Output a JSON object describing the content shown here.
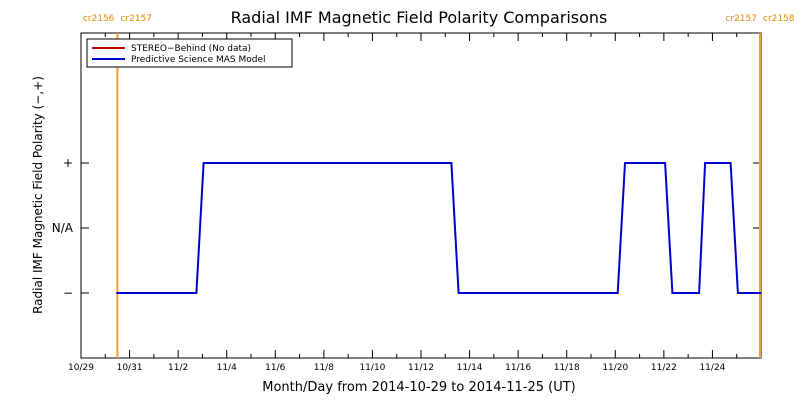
{
  "chart_data": {
    "type": "line",
    "title": "Radial IMF Magnetic Field Polarity Comparisons",
    "xlabel": "Month/Day from 2014-10-29 to 2014-11-25 (UT)",
    "ylabel": "Radial IMF Magnetic Field Polarity (−,+)",
    "xlim": [
      0,
      28
    ],
    "ylim": [
      -2,
      3
    ],
    "x_ticks": [
      {
        "x": 0,
        "label": "10/29"
      },
      {
        "x": 2,
        "label": "10/31"
      },
      {
        "x": 4,
        "label": "11/2"
      },
      {
        "x": 6,
        "label": "11/4"
      },
      {
        "x": 8,
        "label": "11/6"
      },
      {
        "x": 10,
        "label": "11/8"
      },
      {
        "x": 12,
        "label": "11/10"
      },
      {
        "x": 14,
        "label": "11/12"
      },
      {
        "x": 16,
        "label": "11/14"
      },
      {
        "x": 18,
        "label": "11/16"
      },
      {
        "x": 20,
        "label": "11/18"
      },
      {
        "x": 22,
        "label": "11/20"
      },
      {
        "x": 24,
        "label": "11/22"
      },
      {
        "x": 26,
        "label": "11/24"
      }
    ],
    "y_ticks": [
      {
        "y": -1,
        "label": "−"
      },
      {
        "y": 0,
        "label": "N/A"
      },
      {
        "y": 1,
        "label": "+"
      }
    ],
    "legend": {
      "placement": "top-left",
      "entries": [
        {
          "label": "STEREO−Behind (No data)",
          "color": "#cc0000"
        },
        {
          "label": "Predictive Science MAS Model",
          "color": "#0000cc"
        }
      ]
    },
    "carrington_markers": [
      {
        "x": 1.5,
        "label_left": "cr2156",
        "label_right": "cr2157"
      },
      {
        "x": 28.0,
        "label_left": "cr2157",
        "label_right": "cr2158"
      }
    ],
    "series": [
      {
        "name": "Predictive Science MAS Model",
        "color": "#0000cc",
        "points": [
          [
            1.45,
            -1
          ],
          [
            4.75,
            -1
          ],
          [
            5.05,
            1
          ],
          [
            15.25,
            1
          ],
          [
            15.55,
            -1
          ],
          [
            22.1,
            -1
          ],
          [
            22.4,
            1
          ],
          [
            24.05,
            1
          ],
          [
            24.35,
            -1
          ],
          [
            25.45,
            -1
          ],
          [
            25.7,
            1
          ],
          [
            26.75,
            1
          ],
          [
            27.05,
            -1
          ],
          [
            28.0,
            -1
          ]
        ]
      }
    ]
  },
  "colors": {
    "marker": "#f0a030",
    "axis": "#000000"
  }
}
